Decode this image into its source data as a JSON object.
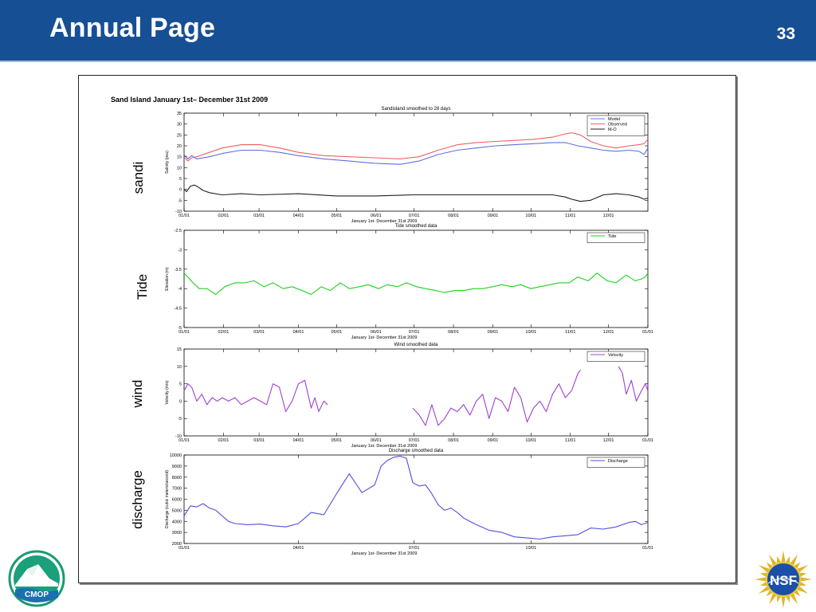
{
  "slide": {
    "title": "Annual Page",
    "number": "33",
    "figure_title": "Sand Island January 1st– December 31st 2009",
    "side_labels": [
      "sandi",
      "Tide",
      "wind",
      "discharge"
    ]
  },
  "logos": {
    "left": "CMOP",
    "right": "NSF"
  },
  "colors": {
    "header": "#174f94",
    "model": "#6070e0",
    "observed": "#f06060",
    "mo": "#202020",
    "tide": "#20d020",
    "velocity": "#a040d0",
    "discharge": "#5050e0"
  },
  "chart_data": [
    {
      "type": "line",
      "title": "Sandisland smoothed to 28 days",
      "xlabel": "January 1st- December 31st 2009",
      "ylabel": "Salinity (psu)",
      "ylim": [
        -10,
        35
      ],
      "yticks": [
        -10,
        -5,
        0,
        5,
        10,
        15,
        20,
        25,
        30,
        35
      ],
      "xlim": [
        0,
        365
      ],
      "xticks": [
        0,
        31,
        59,
        90,
        120,
        151,
        181,
        212,
        243,
        273,
        304,
        334
      ],
      "xticklabels": [
        "01/01",
        "02/01",
        "03/01",
        "04/01",
        "05/01",
        "06/01",
        "07/01",
        "08/01",
        "09/01",
        "10/01",
        "11/01",
        "12/01"
      ],
      "legend": "top-right",
      "series": [
        {
          "name": "Model",
          "x": [
            0,
            3,
            6,
            10,
            20,
            30,
            45,
            60,
            75,
            90,
            110,
            130,
            150,
            170,
            185,
            200,
            215,
            230,
            245,
            260,
            275,
            290,
            300,
            310,
            320,
            330,
            340,
            350,
            358,
            362,
            365
          ],
          "y": [
            16,
            14,
            15.5,
            14,
            15,
            16.5,
            18,
            18,
            17,
            15.5,
            14,
            13,
            12,
            11.5,
            13,
            16,
            18,
            19,
            20,
            20.5,
            21,
            21.5,
            21.5,
            20,
            19,
            18,
            17.5,
            18,
            17.5,
            16,
            19
          ]
        },
        {
          "name": "Observed",
          "x": [
            0,
            3,
            6,
            10,
            20,
            30,
            45,
            60,
            75,
            90,
            110,
            130,
            150,
            170,
            185,
            200,
            215,
            230,
            245,
            260,
            275,
            290,
            300,
            305,
            312,
            320,
            330,
            340,
            350,
            358,
            362,
            365
          ],
          "y": [
            15,
            13,
            14.5,
            15,
            17,
            19,
            20.5,
            20.5,
            19,
            17,
            15.5,
            15,
            14.5,
            14,
            15,
            18,
            20.5,
            21.5,
            22,
            22.5,
            23,
            24,
            25.5,
            26,
            25,
            22,
            20,
            19,
            20,
            20.5,
            21,
            23
          ]
        },
        {
          "name": "M-O",
          "x": [
            0,
            2,
            5,
            8,
            10,
            15,
            20,
            30,
            45,
            60,
            90,
            120,
            150,
            180,
            210,
            240,
            270,
            290,
            300,
            305,
            312,
            320,
            330,
            340,
            350,
            358,
            362,
            365
          ],
          "y": [
            0,
            -1,
            1.5,
            2,
            1.5,
            -0.5,
            -1.5,
            -2.5,
            -2,
            -2.5,
            -2,
            -3,
            -3,
            -2.5,
            -2.5,
            -2.5,
            -2.5,
            -2.5,
            -3.5,
            -4.5,
            -5.5,
            -5,
            -2.5,
            -2,
            -2.5,
            -3.5,
            -4.5,
            -4
          ]
        }
      ]
    },
    {
      "type": "line",
      "title": "Tide smoothed data",
      "xlabel": "January 1st- December 31st 2009",
      "ylabel": "Elevation (m)",
      "ylim": [
        -5,
        -2.5
      ],
      "yticks": [
        -5,
        -4.5,
        -4,
        -3.5,
        -3,
        -2.5
      ],
      "xlim": [
        0,
        365
      ],
      "xticks": [
        0,
        31,
        59,
        90,
        120,
        151,
        181,
        212,
        243,
        273,
        304,
        334,
        365
      ],
      "xticklabels": [
        "01/01",
        "02/01",
        "03/01",
        "04/01",
        "05/01",
        "06/01",
        "07/01",
        "08/01",
        "09/01",
        "10/01",
        "11/01",
        "12/01",
        "01/01"
      ],
      "legend": "top-right",
      "series": [
        {
          "name": "Tide",
          "x": [
            0,
            3,
            7,
            12,
            18,
            25,
            32,
            40,
            48,
            55,
            63,
            70,
            78,
            85,
            93,
            100,
            108,
            115,
            123,
            130,
            138,
            145,
            153,
            160,
            168,
            175,
            183,
            190,
            198,
            205,
            213,
            220,
            228,
            235,
            243,
            250,
            258,
            265,
            273,
            280,
            288,
            295,
            303,
            310,
            318,
            325,
            333,
            340,
            348,
            355,
            360,
            363,
            365
          ],
          "y": [
            -3.6,
            -3.7,
            -3.85,
            -4.0,
            -4.0,
            -4.15,
            -3.95,
            -3.85,
            -3.85,
            -3.8,
            -3.95,
            -3.85,
            -4.0,
            -3.95,
            -4.05,
            -4.15,
            -3.95,
            -4.05,
            -3.85,
            -4.0,
            -3.95,
            -3.9,
            -4.0,
            -3.9,
            -3.95,
            -3.85,
            -3.95,
            -4.0,
            -4.05,
            -4.1,
            -4.05,
            -4.05,
            -4.0,
            -4.0,
            -3.95,
            -3.9,
            -3.95,
            -3.9,
            -4.0,
            -3.95,
            -3.9,
            -3.85,
            -3.85,
            -3.7,
            -3.8,
            -3.6,
            -3.8,
            -3.85,
            -3.65,
            -3.8,
            -3.75,
            -3.7,
            -3.6
          ]
        }
      ]
    },
    {
      "type": "line",
      "title": "Wind smoothed data",
      "xlabel": "January 1st- December 31st 2009",
      "ylabel": "Velocity (m/s)",
      "ylim": [
        -10,
        15
      ],
      "yticks": [
        -10,
        -5,
        0,
        5,
        10,
        15
      ],
      "xlim": [
        0,
        365
      ],
      "xticks": [
        0,
        31,
        59,
        90,
        120,
        151,
        181,
        212,
        243,
        273,
        304,
        334,
        365
      ],
      "xticklabels": [
        "01/01",
        "02/01",
        "03/01",
        "04/01",
        "05/01",
        "06/01",
        "07/01",
        "08/01",
        "09/01",
        "10/01",
        "11/01",
        "12/01",
        "01/01"
      ],
      "legend": "top-right",
      "series": [
        {
          "name": "Velocity",
          "segments": [
            {
              "x": [
                0,
                3,
                6,
                10,
                14,
                18,
                22,
                26,
                30,
                35,
                40,
                45,
                50,
                55,
                60,
                65,
                70,
                75,
                80,
                85,
                90,
                95,
                100,
                103,
                106,
                110,
                113
              ],
              "y": [
                3,
                5,
                4,
                0,
                2,
                -1,
                1,
                0,
                1,
                0,
                1,
                -1,
                0,
                1,
                0,
                -1,
                5,
                4,
                -3,
                0,
                5,
                6,
                -2,
                1,
                -3,
                0,
                -1
              ]
            },
            {
              "x": [
                180,
                185,
                190,
                195,
                200,
                205,
                210,
                215,
                220,
                225,
                230,
                235,
                240,
                245,
                250,
                255,
                260,
                265,
                270,
                275,
                280,
                285,
                290,
                295,
                300,
                305,
                310,
                312
              ],
              "y": [
                -2,
                -4,
                -7,
                -1,
                -7,
                -5,
                -2,
                -3,
                -1,
                -4,
                0,
                2,
                -5,
                1,
                0,
                -3,
                4,
                1,
                -6,
                -2,
                0,
                -3,
                2,
                5,
                1,
                3,
                8,
                9
              ]
            },
            {
              "x": [
                342,
                345,
                348,
                352,
                356,
                360,
                363,
                365
              ],
              "y": [
                10,
                8,
                2,
                6,
                0,
                3,
                5,
                3
              ]
            }
          ]
        }
      ]
    },
    {
      "type": "line",
      "title": "Discharge smoothed data",
      "xlabel": "January 1st- December 31st 2009",
      "ylabel": "Discharge (cubic meters/second)",
      "ylim": [
        2000,
        10000
      ],
      "yticks": [
        2000,
        3000,
        4000,
        5000,
        6000,
        7000,
        8000,
        9000,
        10000
      ],
      "xlim": [
        0,
        365
      ],
      "xticks": [
        0,
        90,
        181,
        273,
        365
      ],
      "xticklabels": [
        "01/01",
        "04/01",
        "07/01",
        "10/01",
        "01/01"
      ],
      "legend": "top-right",
      "series": [
        {
          "name": "Discharge",
          "x": [
            0,
            5,
            10,
            15,
            20,
            25,
            30,
            35,
            40,
            50,
            60,
            70,
            80,
            90,
            100,
            110,
            120,
            130,
            140,
            150,
            155,
            160,
            165,
            170,
            175,
            180,
            185,
            190,
            195,
            200,
            205,
            210,
            215,
            220,
            230,
            240,
            250,
            260,
            270,
            280,
            290,
            300,
            310,
            320,
            330,
            340,
            350,
            355,
            360,
            365
          ],
          "y": [
            4500,
            5400,
            5300,
            5600,
            5200,
            5000,
            4500,
            4000,
            3800,
            3700,
            3750,
            3600,
            3500,
            3800,
            4800,
            4600,
            6500,
            8300,
            6600,
            7300,
            9000,
            9500,
            9800,
            9900,
            9700,
            7500,
            7200,
            7300,
            6500,
            5500,
            5000,
            5200,
            4800,
            4300,
            3700,
            3200,
            3000,
            2600,
            2500,
            2400,
            2600,
            2700,
            2800,
            3400,
            3300,
            3500,
            3900,
            4000,
            3700,
            3900
          ]
        }
      ]
    }
  ]
}
